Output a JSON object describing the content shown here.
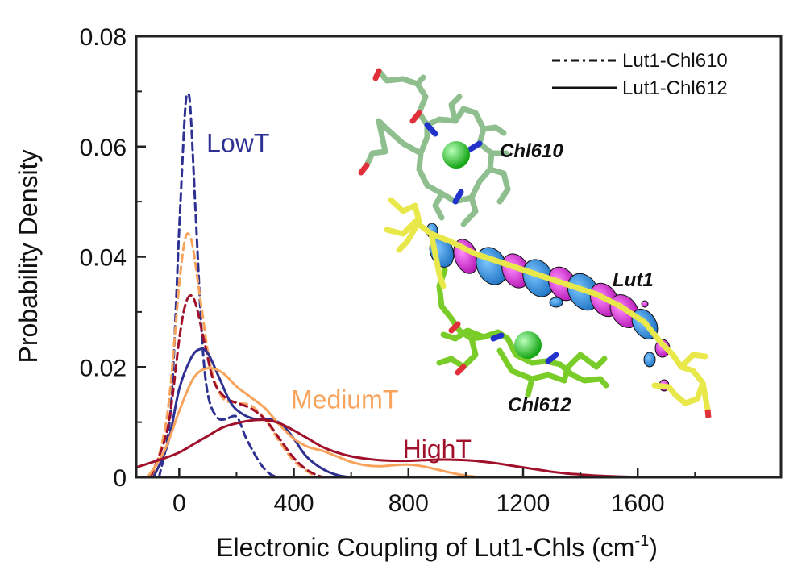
{
  "chart_data": {
    "type": "line",
    "title": "",
    "xlabel": "Electronic Coupling of Lut1-Chls (cm",
    "xlabel_sup": "-1",
    "xlabel_close": ")",
    "ylabel": "Probability Density",
    "xlim": [
      -150,
      2100
    ],
    "ylim": [
      0,
      0.08
    ],
    "xticks": [
      0,
      400,
      800,
      1200,
      1600
    ],
    "xtick_labels": [
      "0",
      "400",
      "800",
      "1200",
      "1600"
    ],
    "yticks": [
      0,
      0.02,
      0.04,
      0.06,
      0.08
    ],
    "ytick_labels": [
      "0",
      "0.02",
      "0.04",
      "0.06",
      "0.08"
    ],
    "grid": false,
    "legend": {
      "placement": "top-right",
      "entries": [
        {
          "label": "Lut1-Chl610",
          "style": "dashed"
        },
        {
          "label": "Lut1-Chl612",
          "style": "solid"
        }
      ]
    },
    "series_labels": [
      {
        "text": "LowT",
        "color": "#2e3192",
        "x": 95,
        "y": 0.059
      },
      {
        "text": "MediumT",
        "color": "#f7a35c",
        "x": 390,
        "y": 0.0125
      },
      {
        "text": "HighT",
        "color": "#a0102a",
        "x": 780,
        "y": 0.0035
      }
    ],
    "series": [
      {
        "name": "LowT Lut1-Chl610",
        "color": "#2e3192",
        "style": "dashed",
        "x": [
          -70,
          -30,
          0,
          20,
          30,
          40,
          60,
          80,
          100,
          130,
          160,
          200,
          230,
          260,
          290,
          320,
          350
        ],
        "y": [
          0,
          0.012,
          0.045,
          0.066,
          0.0695,
          0.066,
          0.045,
          0.025,
          0.015,
          0.011,
          0.0105,
          0.011,
          0.0075,
          0.0045,
          0.002,
          0.0005,
          0
        ]
      },
      {
        "name": "MediumT Lut1-Chl610",
        "color": "#f7a35c",
        "style": "dashed",
        "x": [
          -90,
          -40,
          0,
          20,
          35,
          50,
          80,
          110,
          150,
          200,
          250,
          300,
          350,
          400,
          450,
          480
        ],
        "y": [
          0,
          0.012,
          0.035,
          0.043,
          0.044,
          0.041,
          0.03,
          0.02,
          0.0145,
          0.0135,
          0.013,
          0.0105,
          0.0065,
          0.003,
          0.001,
          0
        ]
      },
      {
        "name": "HighT Lut1-Chl610",
        "color": "#a0102a",
        "style": "dashed",
        "x": [
          -100,
          -40,
          0,
          20,
          40,
          60,
          90,
          120,
          160,
          200,
          250,
          300,
          350,
          400,
          450,
          500
        ],
        "y": [
          0,
          0.009,
          0.025,
          0.031,
          0.033,
          0.031,
          0.024,
          0.0175,
          0.0145,
          0.0135,
          0.0125,
          0.0105,
          0.007,
          0.0035,
          0.0012,
          0
        ]
      },
      {
        "name": "LowT Lut1-Chl612",
        "color": "#2e3192",
        "style": "solid",
        "x": [
          -90,
          -40,
          0,
          40,
          70,
          100,
          140,
          180,
          220,
          270,
          320,
          360,
          400,
          440,
          480,
          520,
          560,
          600
        ],
        "y": [
          0,
          0.006,
          0.016,
          0.0215,
          0.0232,
          0.0225,
          0.018,
          0.0135,
          0.0115,
          0.0105,
          0.0105,
          0.0095,
          0.007,
          0.004,
          0.0022,
          0.001,
          0.0003,
          0
        ]
      },
      {
        "name": "MediumT Lut1-Chl612",
        "color": "#f7a35c",
        "style": "solid",
        "x": [
          -110,
          -50,
          0,
          50,
          100,
          150,
          200,
          250,
          300,
          350,
          400,
          450,
          500,
          550,
          600,
          650,
          700,
          750,
          800,
          850,
          900,
          950,
          1000,
          1050
        ],
        "y": [
          0,
          0.005,
          0.012,
          0.018,
          0.0198,
          0.019,
          0.0165,
          0.0145,
          0.0125,
          0.0095,
          0.007,
          0.0055,
          0.0048,
          0.0038,
          0.0028,
          0.0022,
          0.002,
          0.0022,
          0.0023,
          0.002,
          0.0014,
          0.0008,
          0.0003,
          0
        ]
      },
      {
        "name": "HighT Lut1-Chl612",
        "color": "#a0102a",
        "style": "solid",
        "x": [
          -150,
          -50,
          0,
          50,
          100,
          150,
          200,
          250,
          300,
          350,
          400,
          450,
          500,
          550,
          600,
          650,
          700,
          750,
          800,
          850,
          900,
          950,
          1000,
          1050,
          1100,
          1150,
          1200,
          1250,
          1300,
          1350,
          1400,
          1450,
          1500,
          1550,
          1600,
          1650,
          1700,
          1750,
          1800
        ],
        "y": [
          0.0018,
          0.0035,
          0.0045,
          0.006,
          0.0075,
          0.009,
          0.0098,
          0.0103,
          0.0104,
          0.0098,
          0.0085,
          0.007,
          0.0055,
          0.0045,
          0.0038,
          0.0034,
          0.0031,
          0.003,
          0.003,
          0.0031,
          0.0032,
          0.0032,
          0.0031,
          0.0029,
          0.0026,
          0.0022,
          0.0018,
          0.0014,
          0.001,
          0.0007,
          0.0005,
          0.0003,
          0.0002,
          0.0001,
          5e-05,
          2e-05,
          1e-05,
          0,
          0
        ]
      }
    ]
  },
  "inset": {
    "molecule_labels": [
      "Chl610",
      "Lut1",
      "Chl612"
    ],
    "colors": {
      "chl610": "#8fbf8f",
      "chl612": "#7acc29",
      "lutein": "#e8e84a",
      "magnesium": "#22cc22",
      "orbital_blue": "#2288dd",
      "orbital_magenta": "#dd22dd",
      "oxygen": "#e0303a",
      "nitrogen": "#2233cc"
    }
  }
}
